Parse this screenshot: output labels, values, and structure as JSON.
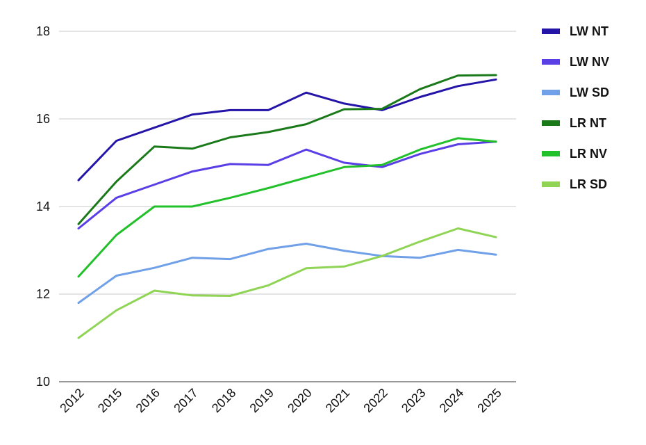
{
  "chart_data": {
    "type": "line",
    "title": "",
    "xlabel": "",
    "ylabel": "",
    "categories": [
      "2012",
      "2015",
      "2016",
      "2017",
      "2018",
      "2019",
      "2020",
      "2021",
      "2022",
      "2023",
      "2024",
      "2025"
    ],
    "ylim": [
      10,
      18
    ],
    "yticks": [
      "10",
      "12",
      "14",
      "16",
      "18"
    ],
    "grid": true,
    "legend": "right",
    "series": [
      {
        "name": "LW NT",
        "color": "#2415a8",
        "values": [
          14.6,
          15.5,
          15.8,
          16.1,
          16.2,
          16.2,
          16.6,
          16.35,
          16.2,
          16.5,
          16.75,
          16.9
        ]
      },
      {
        "name": "LW NV",
        "color": "#5a3ee6",
        "values": [
          13.5,
          14.2,
          14.5,
          14.8,
          14.97,
          14.95,
          15.3,
          15.0,
          14.9,
          15.2,
          15.42,
          15.48
        ]
      },
      {
        "name": "LW SD",
        "color": "#6fa0e8",
        "values": [
          11.8,
          12.42,
          12.6,
          12.83,
          12.8,
          13.03,
          13.15,
          12.99,
          12.87,
          12.83,
          13.01,
          12.9
        ]
      },
      {
        "name": "LR NT",
        "color": "#1a7a1a",
        "values": [
          13.6,
          14.57,
          15.37,
          15.32,
          15.58,
          15.7,
          15.88,
          16.22,
          16.23,
          16.68,
          16.99,
          17.0
        ]
      },
      {
        "name": "LR NV",
        "color": "#22c02a",
        "values": [
          12.4,
          13.35,
          14.0,
          14.0,
          14.2,
          14.42,
          14.66,
          14.9,
          14.95,
          15.3,
          15.56,
          15.48
        ]
      },
      {
        "name": "LR SD",
        "color": "#8fd455",
        "values": [
          11.0,
          11.63,
          12.08,
          11.97,
          11.96,
          12.2,
          12.59,
          12.63,
          12.87,
          13.2,
          13.5,
          13.3
        ]
      }
    ]
  }
}
